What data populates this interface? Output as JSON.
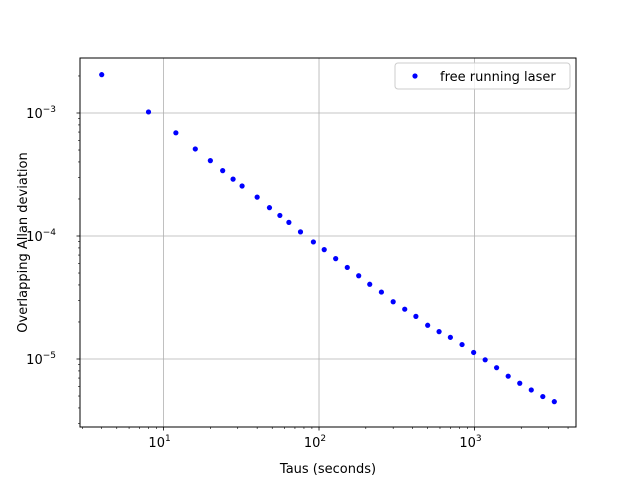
{
  "chart_data": {
    "type": "scatter",
    "xscale": "log",
    "yscale": "log",
    "xlim": [
      2.9,
      4500
    ],
    "ylim": [
      2.8e-06,
      0.0028
    ],
    "xlabel": "Taus (seconds)",
    "ylabel": "Overlapping Allan deviation",
    "grid": true,
    "legend_position": "top-right",
    "marker_color": "#0000ff",
    "x_ticks": [
      {
        "value": 10,
        "base": "10",
        "exp": "1"
      },
      {
        "value": 100,
        "base": "10",
        "exp": "2"
      },
      {
        "value": 1000,
        "base": "10",
        "exp": "3"
      }
    ],
    "y_ticks": [
      {
        "value": 1e-05,
        "base": "10",
        "exp": "−5"
      },
      {
        "value": 0.0001,
        "base": "10",
        "exp": "−4"
      },
      {
        "value": 0.001,
        "base": "10",
        "exp": "−3"
      }
    ],
    "series": [
      {
        "name": "free running laser",
        "x": [
          4,
          8,
          12,
          16,
          20,
          24,
          28,
          32,
          40,
          48,
          56,
          64,
          76,
          92,
          108,
          128,
          152,
          180,
          212,
          252,
          300,
          356,
          420,
          500,
          592,
          700,
          832,
          988,
          1172,
          1388,
          1648,
          1956,
          2320,
          2752,
          3264
        ],
        "y": [
          0.00205,
          0.00102,
          0.00069,
          0.00051,
          0.00041,
          0.00034,
          0.00029,
          0.000255,
          0.000207,
          0.00017,
          0.000147,
          0.000129,
          0.000108,
          8.95e-05,
          7.75e-05,
          6.55e-05,
          5.55e-05,
          4.75e-05,
          4.05e-05,
          3.5e-05,
          2.92e-05,
          2.54e-05,
          2.22e-05,
          1.88e-05,
          1.67e-05,
          1.5e-05,
          1.31e-05,
          1.13e-05,
          9.85e-06,
          8.5e-06,
          7.25e-06,
          6.35e-06,
          5.6e-06,
          4.95e-06,
          4.5e-06
        ]
      }
    ]
  }
}
